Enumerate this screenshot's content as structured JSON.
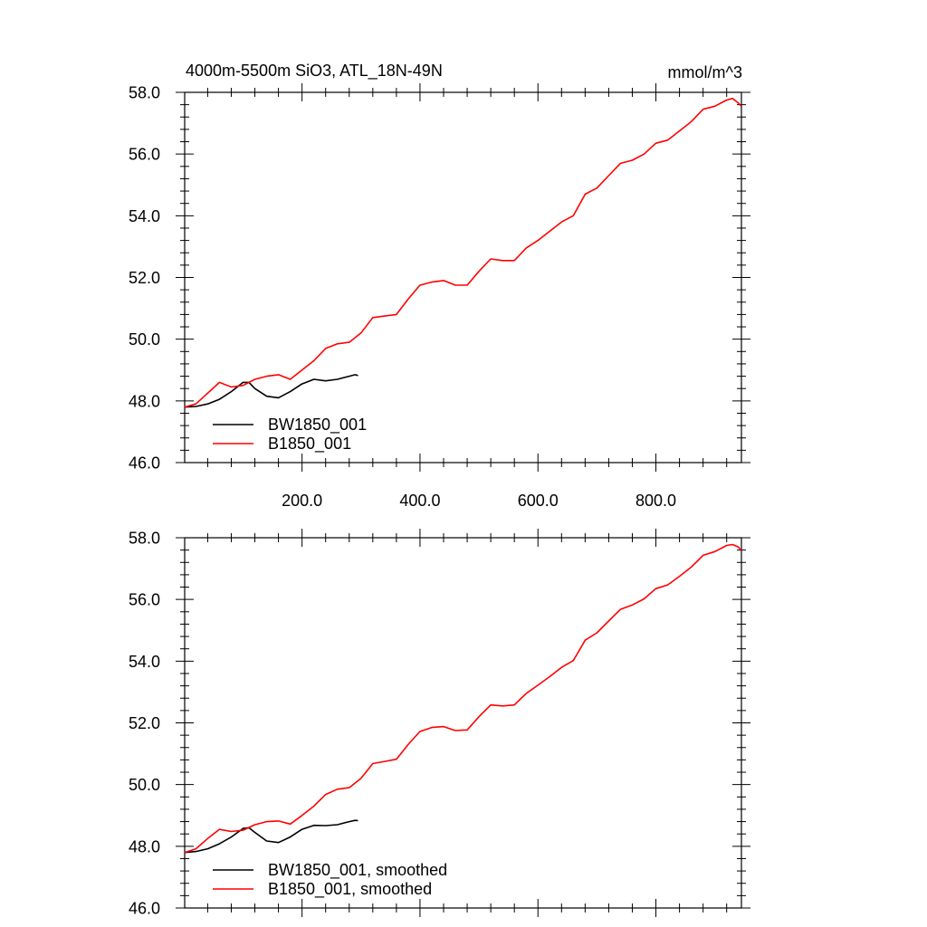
{
  "figure": {
    "title_left": "4000m-5500m SiO3, ATL_18N-49N",
    "title_right": "mmol/m^3"
  },
  "chart_data": [
    {
      "type": "line",
      "title": "4000m-5500m SiO3, ATL_18N-49N",
      "units": "mmol/m^3",
      "xlabel": "",
      "ylabel": "",
      "xlim": [
        1,
        945
      ],
      "ylim": [
        46.0,
        58.0
      ],
      "xticks": [
        200,
        400,
        600,
        800
      ],
      "xtick_labels": [
        "200.0",
        "400.0",
        "600.0",
        "800.0"
      ],
      "yticks": [
        46,
        48,
        50,
        52,
        54,
        56,
        58
      ],
      "ytick_labels": [
        "46.0",
        "48.0",
        "50.0",
        "52.0",
        "54.0",
        "56.0",
        "58.0"
      ],
      "legend": "bottom-left",
      "series": [
        {
          "name": "BW1850_001",
          "color": "#000000",
          "x": [
            1,
            20,
            40,
            60,
            80,
            100,
            110,
            120,
            140,
            160,
            180,
            200,
            220,
            240,
            260,
            280,
            290,
            295
          ],
          "values": [
            47.8,
            47.82,
            47.9,
            48.05,
            48.3,
            48.6,
            48.6,
            48.4,
            48.15,
            48.1,
            48.3,
            48.55,
            48.7,
            48.65,
            48.7,
            48.8,
            48.85,
            48.82
          ]
        },
        {
          "name": "B1850_001",
          "color": "#ff0000",
          "x": [
            1,
            20,
            40,
            60,
            80,
            100,
            120,
            140,
            160,
            180,
            200,
            220,
            240,
            260,
            280,
            300,
            320,
            340,
            360,
            380,
            400,
            420,
            440,
            460,
            480,
            500,
            520,
            540,
            560,
            580,
            600,
            620,
            640,
            660,
            680,
            700,
            720,
            740,
            760,
            780,
            800,
            820,
            840,
            860,
            880,
            900,
            920,
            930,
            940,
            945
          ],
          "values": [
            47.8,
            47.9,
            48.25,
            48.6,
            48.45,
            48.5,
            48.7,
            48.8,
            48.85,
            48.7,
            49.0,
            49.3,
            49.7,
            49.85,
            49.9,
            50.2,
            50.7,
            50.75,
            50.8,
            51.3,
            51.75,
            51.85,
            51.9,
            51.75,
            51.75,
            52.2,
            52.6,
            52.55,
            52.55,
            52.95,
            53.2,
            53.5,
            53.8,
            54.0,
            54.7,
            54.9,
            55.3,
            55.7,
            55.8,
            56.0,
            56.35,
            56.45,
            56.75,
            57.05,
            57.45,
            57.55,
            57.75,
            57.8,
            57.65,
            57.55
          ]
        }
      ]
    },
    {
      "type": "line",
      "title": "",
      "xlabel": "",
      "ylabel": "",
      "xlim": [
        1,
        945
      ],
      "ylim": [
        46.0,
        58.0
      ],
      "xticks": [
        200,
        400,
        600,
        800
      ],
      "xtick_labels": [],
      "yticks": [
        46,
        48,
        50,
        52,
        54,
        56,
        58
      ],
      "ytick_labels": [
        "46.0",
        "48.0",
        "50.0",
        "52.0",
        "54.0",
        "56.0",
        "58.0"
      ],
      "legend": "bottom-left",
      "series": [
        {
          "name": "BW1850_001, smoothed",
          "color": "#000000",
          "x": [
            1,
            20,
            40,
            60,
            80,
            100,
            110,
            120,
            140,
            160,
            180,
            200,
            220,
            240,
            260,
            280,
            290,
            295
          ],
          "values": [
            47.8,
            47.83,
            47.92,
            48.08,
            48.3,
            48.58,
            48.6,
            48.45,
            48.17,
            48.12,
            48.3,
            48.55,
            48.68,
            48.67,
            48.7,
            48.8,
            48.84,
            48.83
          ]
        },
        {
          "name": "B1850_001, smoothed",
          "color": "#ff0000",
          "x": [
            1,
            20,
            40,
            60,
            80,
            100,
            120,
            140,
            160,
            180,
            200,
            220,
            240,
            260,
            280,
            300,
            320,
            340,
            360,
            380,
            400,
            420,
            440,
            460,
            480,
            500,
            520,
            540,
            560,
            580,
            600,
            620,
            640,
            660,
            680,
            700,
            720,
            740,
            760,
            780,
            800,
            820,
            840,
            860,
            880,
            900,
            920,
            930,
            940,
            945
          ],
          "values": [
            47.8,
            47.92,
            48.25,
            48.55,
            48.48,
            48.52,
            48.7,
            48.8,
            48.82,
            48.72,
            49.0,
            49.3,
            49.68,
            49.85,
            49.9,
            50.2,
            50.68,
            50.75,
            50.82,
            51.3,
            51.72,
            51.85,
            51.88,
            51.75,
            51.77,
            52.2,
            52.58,
            52.55,
            52.58,
            52.95,
            53.22,
            53.5,
            53.8,
            54.02,
            54.68,
            54.92,
            55.3,
            55.68,
            55.82,
            56.02,
            56.35,
            56.47,
            56.75,
            57.05,
            57.43,
            57.55,
            57.75,
            57.78,
            57.7,
            57.57
          ]
        }
      ]
    }
  ]
}
